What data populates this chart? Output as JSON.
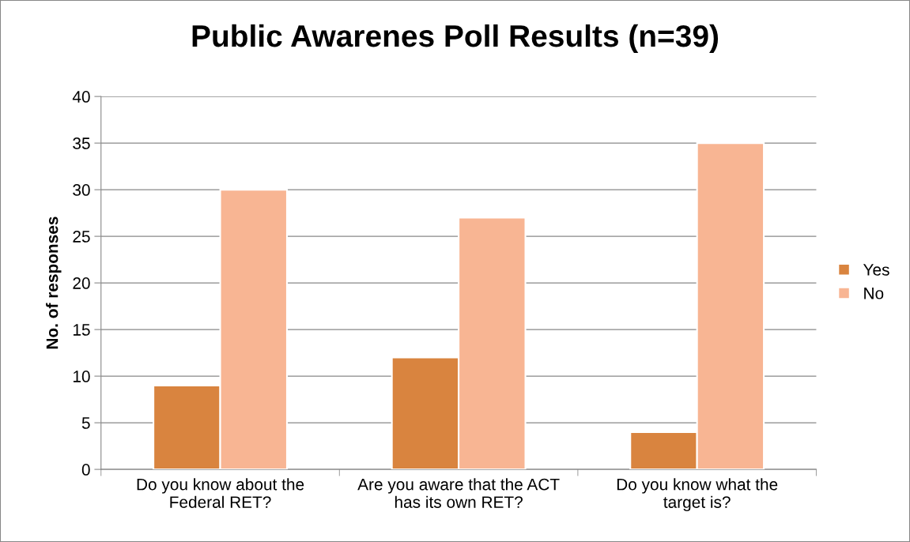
{
  "chart_data": {
    "type": "bar",
    "title": "Public Awarenes Poll Results (n=39)",
    "ylabel": "No. of responses",
    "categories": [
      "Do you know about the\nFederal RET?",
      "Are you aware that the ACT\nhas its own RET?",
      "Do you know what the\ntarget is?"
    ],
    "series": [
      {
        "name": "Yes",
        "color": "#d9843f",
        "values": [
          9,
          12,
          4
        ]
      },
      {
        "name": "No",
        "color": "#f8b593",
        "values": [
          30,
          27,
          35
        ]
      }
    ],
    "ylim": [
      0,
      40
    ],
    "yticks": [
      0,
      5,
      10,
      15,
      20,
      25,
      30,
      35,
      40
    ],
    "grid": "y",
    "legend": "right"
  }
}
